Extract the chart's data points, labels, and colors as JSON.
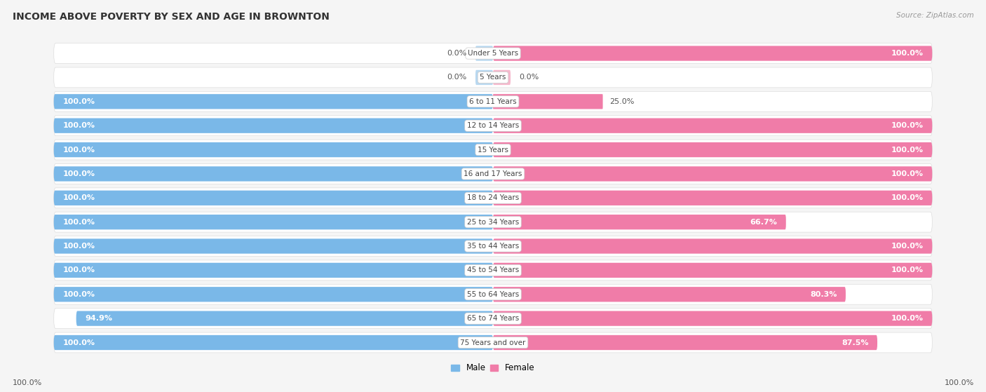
{
  "title": "INCOME ABOVE POVERTY BY SEX AND AGE IN BROWNTON",
  "source": "Source: ZipAtlas.com",
  "categories": [
    "Under 5 Years",
    "5 Years",
    "6 to 11 Years",
    "12 to 14 Years",
    "15 Years",
    "16 and 17 Years",
    "18 to 24 Years",
    "25 to 34 Years",
    "35 to 44 Years",
    "45 to 54 Years",
    "55 to 64 Years",
    "65 to 74 Years",
    "75 Years and over"
  ],
  "male_values": [
    0.0,
    0.0,
    100.0,
    100.0,
    100.0,
    100.0,
    100.0,
    100.0,
    100.0,
    100.0,
    100.0,
    94.9,
    100.0
  ],
  "female_values": [
    100.0,
    0.0,
    25.0,
    100.0,
    100.0,
    100.0,
    100.0,
    66.7,
    100.0,
    100.0,
    80.3,
    100.0,
    87.5
  ],
  "male_color": "#7ab8e8",
  "female_color": "#f07ca8",
  "male_color_light": "#b8d8f0",
  "female_color_light": "#f5b8cc",
  "row_bg_odd": "#f7f7f7",
  "row_bg_even": "#eeeeee",
  "title_fontsize": 10,
  "label_fontsize": 8,
  "category_fontsize": 7.5,
  "source_fontsize": 7.5,
  "bar_height": 0.62,
  "x_left_label": "100.0%",
  "x_right_label": "100.0%"
}
